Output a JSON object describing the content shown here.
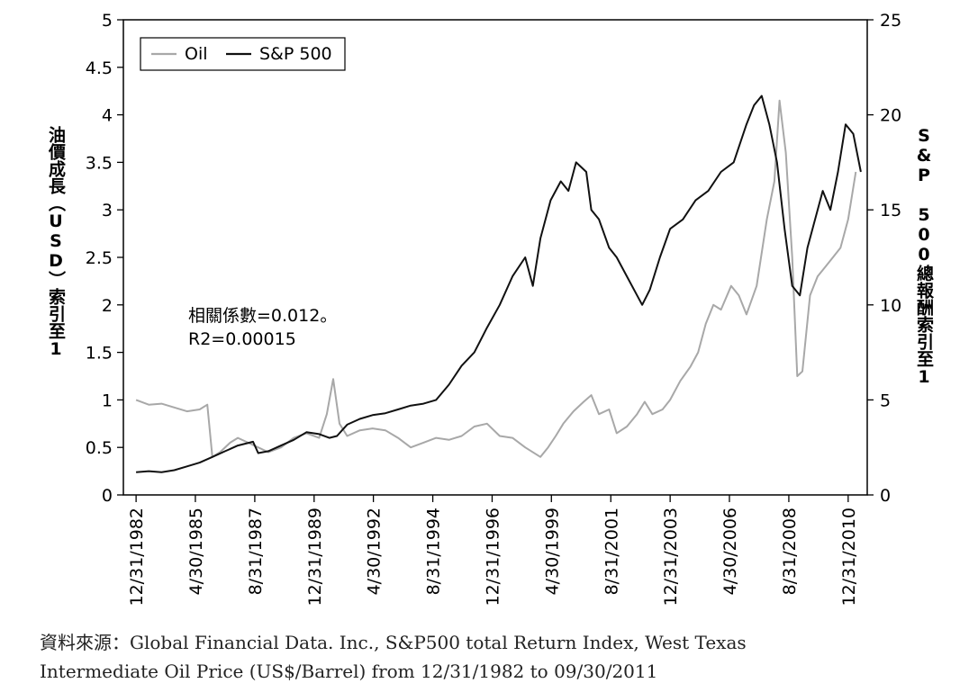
{
  "chart_data": {
    "type": "line",
    "title": "",
    "xlabel": "",
    "ylabel_left": "油價成長（USD）索引至1",
    "ylabel_right": "S&P 500總報酬索引至1",
    "ylim_left": [
      0,
      5
    ],
    "ylim_right": [
      0,
      25
    ],
    "yticks_left": [
      "0",
      "0.5",
      "1",
      "1.5",
      "2",
      "2.5",
      "3",
      "3.5",
      "4",
      "4.5",
      "5"
    ],
    "yticks_right": [
      "0",
      "5",
      "10",
      "15",
      "20",
      "25"
    ],
    "x_tick_labels": [
      "12/31/1982",
      "4/30/1985",
      "8/31/1987",
      "12/31/1989",
      "4/30/1992",
      "8/31/1994",
      "12/31/1996",
      "4/30/1999",
      "8/31/2001",
      "12/31/2003",
      "4/30/2006",
      "8/31/2008",
      "12/31/2010"
    ],
    "x_range_years": [
      1982.5,
      2011.75
    ],
    "legend": {
      "placement": "top-left",
      "entries": [
        "Oil",
        "S&P 500"
      ]
    },
    "annotation": {
      "line1": "相關係數=0.012。",
      "line2": "R2=0.00015"
    },
    "series": [
      {
        "name": "Oil",
        "axis": "left",
        "color": "#a8a8a8",
        "x": [
          1983.0,
          1983.5,
          1984.0,
          1984.5,
          1985.0,
          1985.5,
          1985.8,
          1986.0,
          1986.3,
          1986.7,
          1987.0,
          1987.4,
          1987.8,
          1988.2,
          1988.7,
          1989.2,
          1989.7,
          1990.2,
          1990.5,
          1990.75,
          1991.0,
          1991.3,
          1991.8,
          1992.3,
          1992.8,
          1993.3,
          1993.8,
          1994.3,
          1994.8,
          1995.3,
          1995.8,
          1996.3,
          1996.8,
          1997.3,
          1997.8,
          1998.3,
          1998.9,
          1999.2,
          1999.5,
          1999.8,
          2000.2,
          2000.6,
          2000.9,
          2001.2,
          2001.6,
          2001.9,
          2002.3,
          2002.7,
          2003.0,
          2003.3,
          2003.7,
          2004.0,
          2004.4,
          2004.8,
          2005.1,
          2005.4,
          2005.7,
          2006.0,
          2006.4,
          2006.7,
          2007.0,
          2007.4,
          2007.8,
          2008.1,
          2008.3,
          2008.55,
          2008.8,
          2009.0,
          2009.2,
          2009.5,
          2009.8,
          2010.1,
          2010.4,
          2010.7,
          2011.0,
          2011.3
        ],
        "values": [
          1.0,
          0.95,
          0.96,
          0.92,
          0.88,
          0.9,
          0.95,
          0.4,
          0.45,
          0.55,
          0.6,
          0.55,
          0.5,
          0.45,
          0.5,
          0.6,
          0.65,
          0.6,
          0.85,
          1.22,
          0.75,
          0.62,
          0.68,
          0.7,
          0.68,
          0.6,
          0.5,
          0.55,
          0.6,
          0.58,
          0.62,
          0.72,
          0.75,
          0.62,
          0.6,
          0.5,
          0.4,
          0.5,
          0.62,
          0.75,
          0.88,
          0.98,
          1.05,
          0.85,
          0.9,
          0.65,
          0.72,
          0.85,
          0.98,
          0.85,
          0.9,
          1.0,
          1.2,
          1.35,
          1.5,
          1.8,
          2.0,
          1.95,
          2.2,
          2.1,
          1.9,
          2.2,
          2.9,
          3.3,
          4.15,
          3.6,
          2.5,
          1.25,
          1.3,
          2.1,
          2.3,
          2.4,
          2.5,
          2.6,
          2.9,
          3.4
        ]
      },
      {
        "name": "S&P 500",
        "axis": "right",
        "color": "#111111",
        "x": [
          1983.0,
          1983.5,
          1984.0,
          1984.5,
          1985.0,
          1985.5,
          1986.0,
          1986.5,
          1987.0,
          1987.6,
          1987.8,
          1988.2,
          1988.7,
          1989.2,
          1989.7,
          1990.2,
          1990.6,
          1990.9,
          1991.3,
          1991.8,
          1992.3,
          1992.8,
          1993.3,
          1993.8,
          1994.3,
          1994.8,
          1995.3,
          1995.8,
          1996.3,
          1996.8,
          1997.3,
          1997.8,
          1998.3,
          1998.6,
          1998.9,
          1999.3,
          1999.7,
          2000.0,
          2000.3,
          2000.7,
          2000.9,
          2001.2,
          2001.6,
          2001.9,
          2002.3,
          2002.7,
          2002.9,
          2003.2,
          2003.6,
          2004.0,
          2004.5,
          2005.0,
          2005.5,
          2006.0,
          2006.5,
          2007.0,
          2007.3,
          2007.6,
          2007.9,
          2008.2,
          2008.5,
          2008.8,
          2009.1,
          2009.4,
          2009.7,
          2010.0,
          2010.3,
          2010.6,
          2010.9,
          2011.2,
          2011.5
        ],
        "values": [
          1.2,
          1.25,
          1.2,
          1.3,
          1.5,
          1.7,
          2.0,
          2.3,
          2.6,
          2.8,
          2.2,
          2.3,
          2.6,
          2.9,
          3.3,
          3.2,
          3.0,
          3.1,
          3.7,
          4.0,
          4.2,
          4.3,
          4.5,
          4.7,
          4.8,
          5.0,
          5.8,
          6.8,
          7.5,
          8.8,
          10.0,
          11.5,
          12.5,
          11.0,
          13.5,
          15.5,
          16.5,
          16.0,
          17.5,
          17.0,
          15.0,
          14.5,
          13.0,
          12.5,
          11.5,
          10.5,
          10.0,
          10.8,
          12.5,
          14.0,
          14.5,
          15.5,
          16.0,
          17.0,
          17.5,
          19.5,
          20.5,
          21.0,
          19.5,
          17.5,
          14.0,
          11.0,
          10.5,
          13.0,
          14.5,
          16.0,
          15.0,
          17.0,
          19.5,
          19.0,
          17.0
        ]
      }
    ]
  },
  "source": {
    "line1": "資料來源：Global Financial Data. Inc., S&P500 total Return Index, West Texas",
    "line2": "Intermediate Oil Price (US$/Barrel) from 12/31/1982 to 09/30/2011"
  }
}
